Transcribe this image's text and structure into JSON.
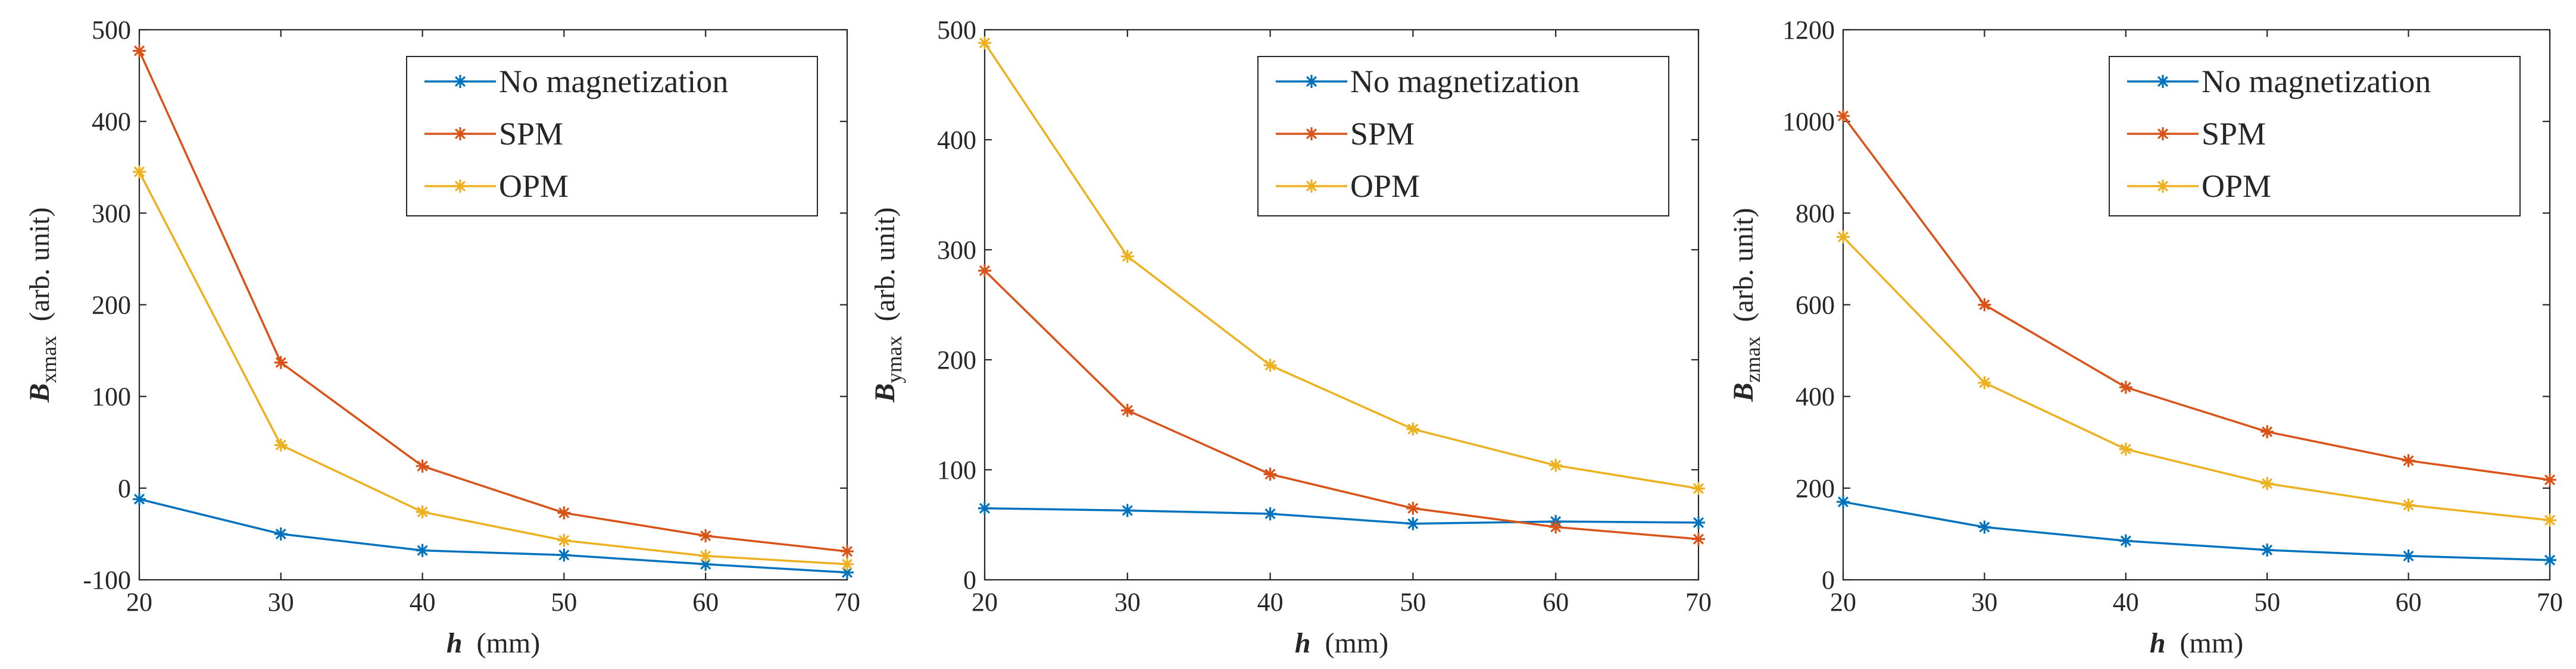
{
  "chart_data": [
    {
      "type": "line",
      "xlabel": "h",
      "xunit": "(mm)",
      "ylabel_var": "B",
      "ylabel_sub": "xmax",
      "ylabel_unit": "(arb. unit)",
      "x": [
        20,
        30,
        40,
        50,
        60,
        70
      ],
      "xlim": [
        20,
        70
      ],
      "xticks": [
        "20",
        "30",
        "40",
        "50",
        "60",
        "70"
      ],
      "ylim": [
        -100,
        500
      ],
      "yticks": [
        "-100",
        "0",
        "100",
        "200",
        "300",
        "400",
        "500"
      ],
      "yticks_values": [
        -100,
        0,
        100,
        200,
        300,
        400,
        500
      ],
      "legend_position": "top-right",
      "series": [
        {
          "name": "No magnetization",
          "color": "#0072BD",
          "values": [
            -12,
            -50,
            -68,
            -73,
            -83,
            -92
          ]
        },
        {
          "name": "SPM",
          "color": "#D95319",
          "values": [
            477,
            137,
            24,
            -27,
            -52,
            -69
          ]
        },
        {
          "name": "OPM",
          "color": "#EDB120",
          "values": [
            345,
            47,
            -26,
            -57,
            -74,
            -83
          ]
        }
      ]
    },
    {
      "type": "line",
      "xlabel": "h",
      "xunit": "(mm)",
      "ylabel_var": "B",
      "ylabel_sub": "ymax",
      "ylabel_unit": "(arb. unit)",
      "x": [
        20,
        30,
        40,
        50,
        60,
        70
      ],
      "xlim": [
        20,
        70
      ],
      "xticks": [
        "20",
        "30",
        "40",
        "50",
        "60",
        "70"
      ],
      "ylim": [
        0,
        500
      ],
      "yticks": [
        "0",
        "100",
        "200",
        "300",
        "400",
        "500"
      ],
      "yticks_values": [
        0,
        100,
        200,
        300,
        400,
        500
      ],
      "legend_position": "top-right",
      "series": [
        {
          "name": "No magnetization",
          "color": "#0072BD",
          "values": [
            65,
            63,
            60,
            51,
            53,
            52
          ]
        },
        {
          "name": "SPM",
          "color": "#D95319",
          "values": [
            281,
            154,
            96,
            65,
            48,
            37
          ]
        },
        {
          "name": "OPM",
          "color": "#EDB120",
          "values": [
            488,
            294,
            195,
            137,
            104,
            83
          ]
        }
      ]
    },
    {
      "type": "line",
      "xlabel": "h",
      "xunit": "(mm)",
      "ylabel_var": "B",
      "ylabel_sub": "zmax",
      "ylabel_unit": "(arb. unit)",
      "x": [
        20,
        30,
        40,
        50,
        60,
        70
      ],
      "xlim": [
        20,
        70
      ],
      "xticks": [
        "20",
        "30",
        "40",
        "50",
        "60",
        "70"
      ],
      "ylim": [
        0,
        1200
      ],
      "yticks": [
        "0",
        "200",
        "400",
        "600",
        "800",
        "1000",
        "1200"
      ],
      "yticks_values": [
        0,
        200,
        400,
        600,
        800,
        1000,
        1200
      ],
      "legend_position": "top-right",
      "series": [
        {
          "name": "No magnetization",
          "color": "#0072BD",
          "values": [
            170,
            115,
            85,
            65,
            52,
            43
          ]
        },
        {
          "name": "SPM",
          "color": "#D95319",
          "values": [
            1012,
            600,
            420,
            323,
            260,
            218
          ]
        },
        {
          "name": "OPM",
          "color": "#EDB120",
          "values": [
            748,
            430,
            285,
            210,
            163,
            130
          ]
        }
      ]
    }
  ]
}
